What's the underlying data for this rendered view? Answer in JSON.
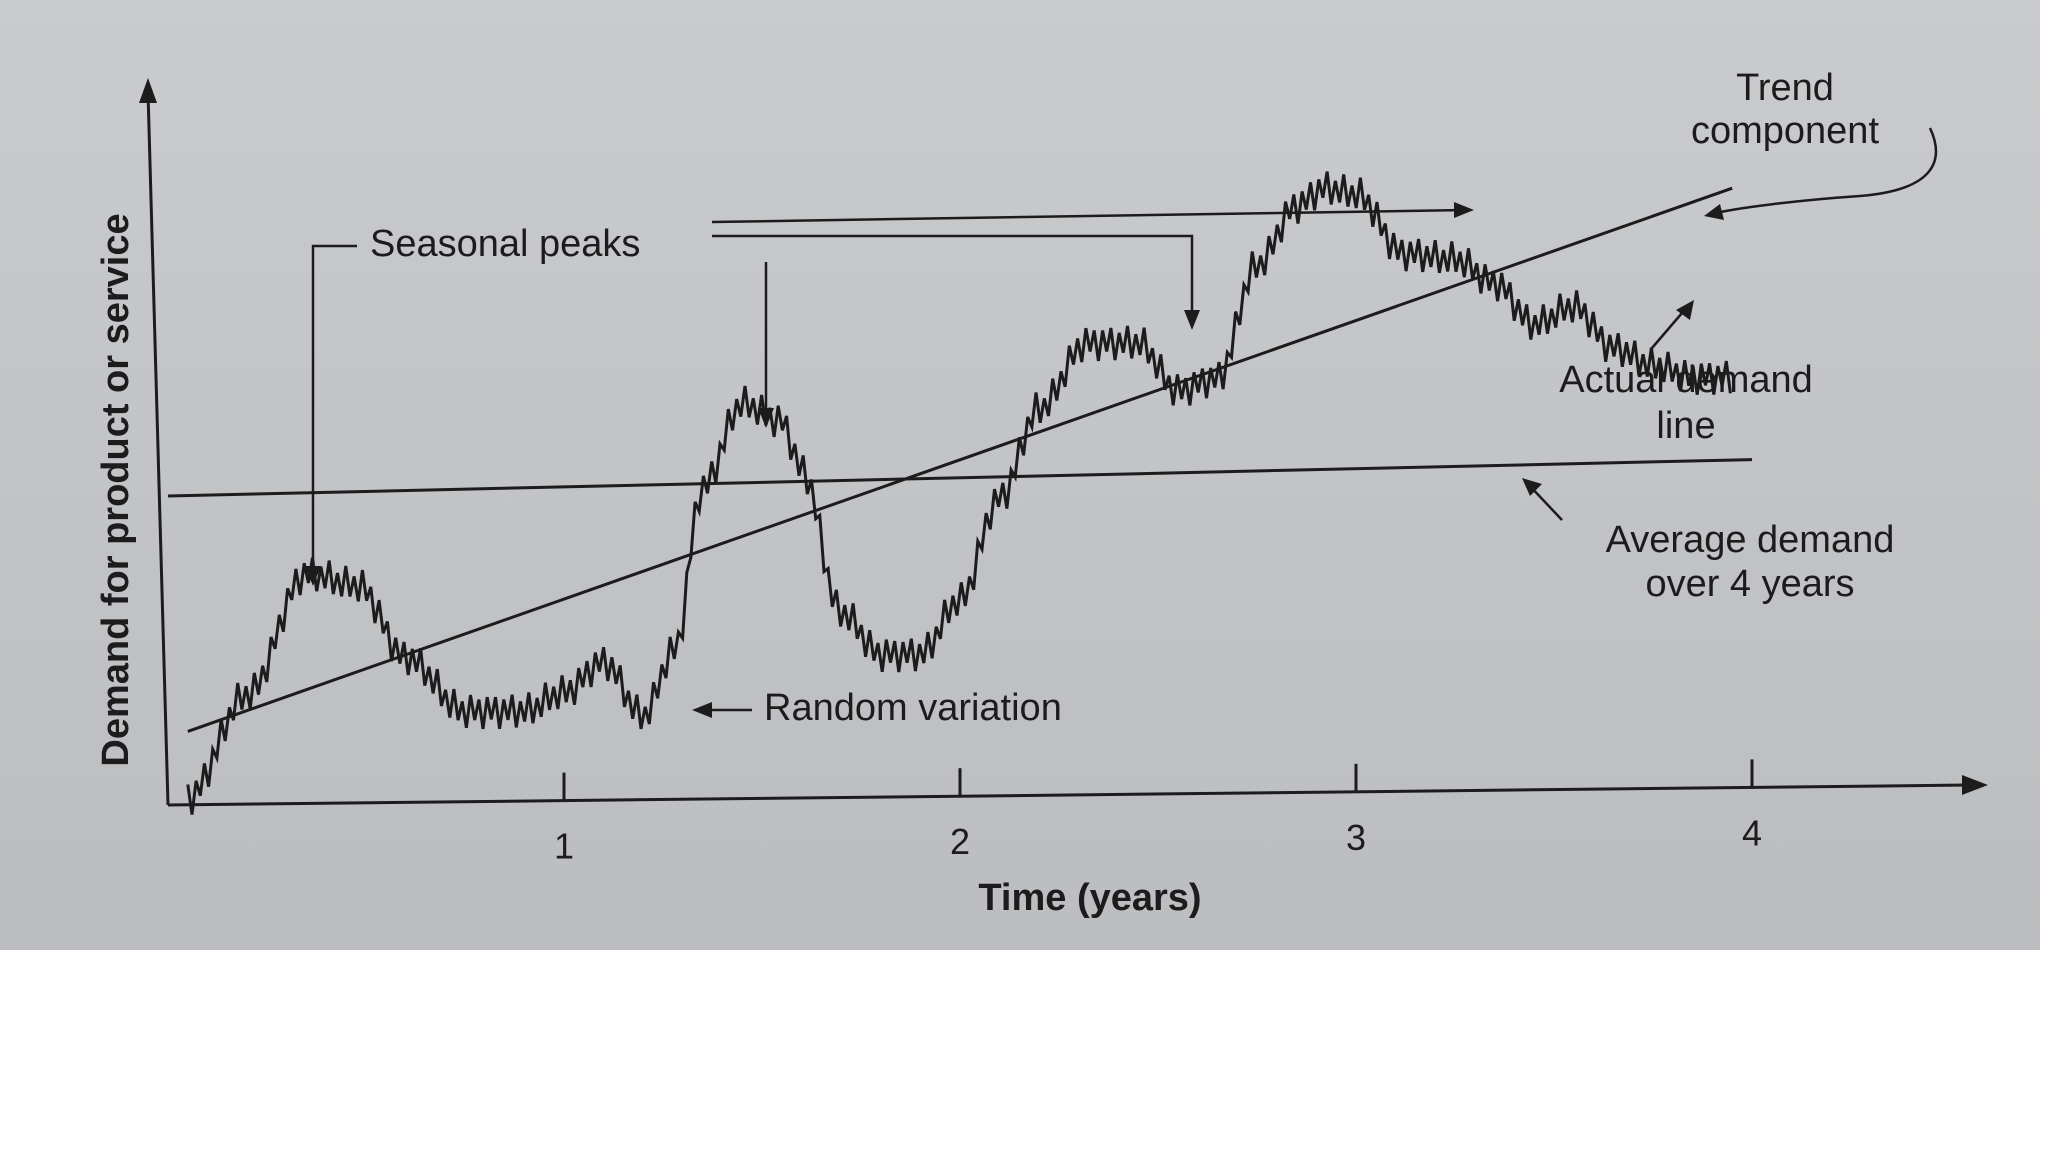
{
  "chart_data": {
    "type": "line",
    "title": "",
    "xlabel": "Time (years)",
    "ylabel": "Demand for product or service",
    "x_ticks": [
      1,
      2,
      3,
      4
    ],
    "xlim": [
      0,
      4.6
    ],
    "ylim": [
      0,
      10
    ],
    "grid": false,
    "legend": "none",
    "series": [
      {
        "kind": "actual",
        "x": [
          0.05,
          0.2,
          0.35,
          0.48,
          0.6,
          0.75,
          0.9,
          1.0,
          1.1,
          1.2,
          1.28,
          1.35,
          1.45,
          1.55,
          1.6,
          1.7,
          1.8,
          1.9,
          2.0,
          2.1,
          2.2,
          2.32,
          2.45,
          2.55,
          2.65,
          2.75,
          2.85,
          2.92,
          3.0,
          3.12,
          3.25,
          3.35,
          3.45,
          3.55,
          3.65,
          3.75,
          3.85,
          3.95
        ],
        "y": [
          0.1,
          1.8,
          3.8,
          3.6,
          2.4,
          1.5,
          1.5,
          1.8,
          2.3,
          1.4,
          2.5,
          5.2,
          6.6,
          6.3,
          5.5,
          3.1,
          2.4,
          2.4,
          3.3,
          5.0,
          6.5,
          7.6,
          7.6,
          6.8,
          7.0,
          8.9,
          9.9,
          10.2,
          10.1,
          9.1,
          9.0,
          8.6,
          7.9,
          8.2,
          7.5,
          7.2,
          7.0,
          7.0
        ]
      },
      {
        "kind": "trend",
        "x": [
          0.05,
          3.95
        ],
        "y": [
          1.2,
          10.2
        ]
      },
      {
        "kind": "average",
        "x": [
          0.0,
          4.0
        ],
        "y": [
          5.1,
          5.6
        ]
      }
    ],
    "annotations": {
      "seasonal_peaks": "Seasonal peaks",
      "random_variation": "Random variation",
      "trend_line1": "Trend",
      "trend_line2": "component",
      "actual_line1": "Actual demand",
      "actual_line2": "line",
      "average_line1": "Average demand",
      "average_line2": "over 4 years"
    }
  }
}
